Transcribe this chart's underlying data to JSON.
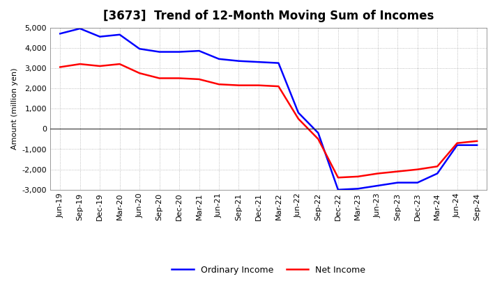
{
  "title": "[3673]  Trend of 12-Month Moving Sum of Incomes",
  "ylabel": "Amount (million yen)",
  "ylim": [
    -3000,
    5000
  ],
  "yticks": [
    -3000,
    -2000,
    -1000,
    0,
    1000,
    2000,
    3000,
    4000,
    5000
  ],
  "background_color": "#ffffff",
  "grid_color": "#aaaaaa",
  "labels": [
    "Jun-19",
    "Sep-19",
    "Dec-19",
    "Mar-20",
    "Jun-20",
    "Sep-20",
    "Dec-20",
    "Mar-21",
    "Jun-21",
    "Sep-21",
    "Dec-21",
    "Mar-22",
    "Jun-22",
    "Sep-22",
    "Dec-22",
    "Mar-23",
    "Jun-23",
    "Sep-23",
    "Dec-23",
    "Mar-24",
    "Jun-24",
    "Sep-24"
  ],
  "ordinary_income": [
    4700,
    4950,
    4550,
    4650,
    3950,
    3800,
    3800,
    3850,
    3450,
    3350,
    3300,
    3250,
    800,
    -200,
    -3000,
    -2950,
    -2800,
    -2650,
    -2650,
    -2200,
    -800,
    -800
  ],
  "net_income": [
    3050,
    3200,
    3100,
    3200,
    2750,
    2500,
    2500,
    2450,
    2200,
    2150,
    2150,
    2100,
    500,
    -500,
    -2400,
    -2350,
    -2200,
    -2100,
    -2000,
    -1850,
    -700,
    -600
  ],
  "ordinary_color": "#0000ff",
  "net_color": "#ff0000",
  "line_width": 1.8,
  "title_fontsize": 12,
  "axis_fontsize": 8,
  "ylabel_fontsize": 8
}
